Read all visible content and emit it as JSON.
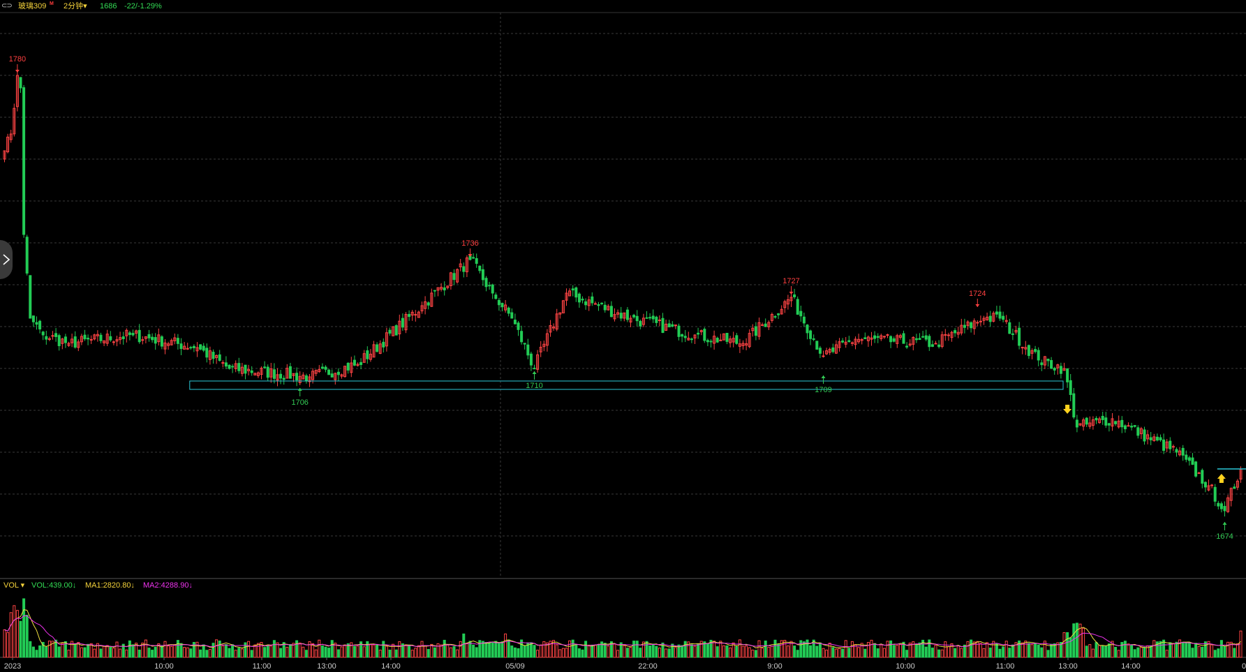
{
  "header": {
    "link_icon": "⊂⊃",
    "symbol": "玻璃309",
    "badge": "M",
    "period": "2分钟",
    "period_caret": "▾",
    "last_price": "1686",
    "change": "-22/-1.29%"
  },
  "volume_legend": {
    "indicator": "VOL ▾",
    "vol": "VOL:439.00↓",
    "ma1": "MA1:2820.80↓",
    "ma2": "MA2:4288.90↓"
  },
  "colors": {
    "up": "#ff4444",
    "down": "#22cc55",
    "grid": "#3a3a3a",
    "box": "#2bc8d8",
    "arrow_signal": "#ffd21e",
    "ma1": "#f0e040",
    "ma2": "#ee33ee",
    "label_high": "#ff4040",
    "label_low": "#33cc55"
  },
  "chart_data": {
    "type": "candlestick",
    "ylim": [
      1660,
      1795
    ],
    "x_ticks": [
      "2023",
      "10:00",
      "11:00",
      "13:00",
      "14:00",
      "05/09",
      "22:00",
      "9:00",
      "10:00",
      "11:00",
      "13:00",
      "14:00"
    ],
    "last_tick_fragment": "0",
    "anchors": [
      {
        "i": 0,
        "v": 1762
      },
      {
        "i": 2,
        "v": 1766
      },
      {
        "i": 4,
        "v": 1780
      },
      {
        "i": 5,
        "v": 1777
      },
      {
        "i": 6,
        "v": 1742
      },
      {
        "i": 8,
        "v": 1722
      },
      {
        "i": 12,
        "v": 1718
      },
      {
        "i": 20,
        "v": 1716
      },
      {
        "i": 40,
        "v": 1718
      },
      {
        "i": 60,
        "v": 1715
      },
      {
        "i": 70,
        "v": 1710
      },
      {
        "i": 95,
        "v": 1708
      },
      {
        "i": 110,
        "v": 1711
      },
      {
        "i": 130,
        "v": 1725
      },
      {
        "i": 145,
        "v": 1736
      },
      {
        "i": 152,
        "v": 1728
      },
      {
        "i": 158,
        "v": 1722
      },
      {
        "i": 165,
        "v": 1710
      },
      {
        "i": 175,
        "v": 1728
      },
      {
        "i": 195,
        "v": 1722
      },
      {
        "i": 215,
        "v": 1718
      },
      {
        "i": 230,
        "v": 1716
      },
      {
        "i": 245,
        "v": 1727
      },
      {
        "i": 255,
        "v": 1713
      },
      {
        "i": 265,
        "v": 1717
      },
      {
        "i": 290,
        "v": 1716
      },
      {
        "i": 305,
        "v": 1722
      },
      {
        "i": 310,
        "v": 1722
      },
      {
        "i": 322,
        "v": 1712
      },
      {
        "i": 330,
        "v": 1710
      },
      {
        "i": 334,
        "v": 1696
      },
      {
        "i": 345,
        "v": 1698
      },
      {
        "i": 365,
        "v": 1690
      },
      {
        "i": 375,
        "v": 1682
      },
      {
        "i": 380,
        "v": 1676
      },
      {
        "i": 385,
        "v": 1686
      }
    ],
    "series": [
      {
        "name": "VOL",
        "type": "volume"
      },
      {
        "name": "MA1",
        "type": "line"
      },
      {
        "name": "MA2",
        "type": "line"
      }
    ],
    "annotations": [
      {
        "text": "1780",
        "kind": "high",
        "i": 4,
        "v": 1780
      },
      {
        "text": "1736",
        "kind": "high",
        "i": 145,
        "v": 1736
      },
      {
        "text": "1727",
        "kind": "high",
        "i": 245,
        "v": 1727
      },
      {
        "text": "1724",
        "kind": "high",
        "i": 303,
        "v": 1724
      },
      {
        "text": "1706",
        "kind": "low",
        "i": 92,
        "v": 1706
      },
      {
        "text": "1710",
        "kind": "low",
        "i": 165,
        "v": 1710
      },
      {
        "text": "1709",
        "kind": "low",
        "i": 255,
        "v": 1709
      },
      {
        "text": "1674",
        "kind": "low",
        "i": 380,
        "v": 1674
      }
    ],
    "range_box": {
      "from_i": 58,
      "to_i": 330,
      "low": 1705,
      "high": 1707
    },
    "signals": [
      {
        "kind": "sell",
        "i": 331,
        "v": 1700
      },
      {
        "kind": "buy",
        "i": 379,
        "v": 1684
      }
    ]
  }
}
